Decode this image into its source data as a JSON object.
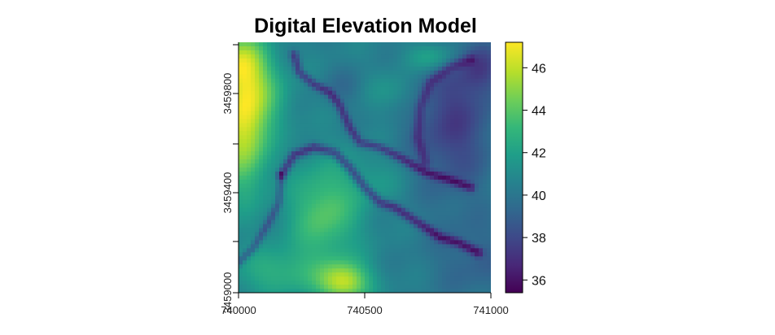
{
  "chart_data": {
    "type": "heatmap",
    "title": "Digital Elevation Model",
    "xlabel": "",
    "ylabel": "",
    "x_ticks": [
      "740000",
      "740500",
      "741000"
    ],
    "y_ticks": [
      "3459000",
      "3459400",
      "3459800"
    ],
    "xlim": [
      740000,
      741000
    ],
    "ylim": [
      3459000,
      3460000
    ],
    "colorbar": {
      "range": [
        35.4,
        47.2
      ],
      "ticks": [
        "36",
        "38",
        "40",
        "42",
        "44",
        "46"
      ],
      "colormap": "viridis"
    },
    "legend_position": "right",
    "grid": false
  },
  "colors": {
    "viridis": [
      "#440154",
      "#482878",
      "#3e4989",
      "#31688e",
      "#26828e",
      "#1f9e89",
      "#35b779",
      "#6ece58",
      "#b5de2b",
      "#fde725"
    ]
  }
}
